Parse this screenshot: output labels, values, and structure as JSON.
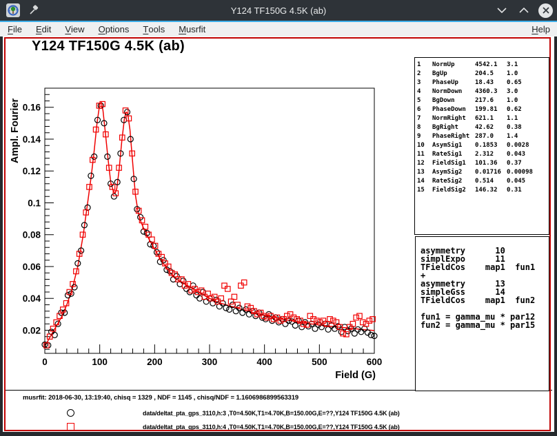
{
  "window": {
    "title": "Y124 TF150G 4.5K (ab)"
  },
  "menu": {
    "items": [
      "File",
      "Edit",
      "View",
      "Options",
      "Tools",
      "Musrfit"
    ],
    "help_label": "Help"
  },
  "param_table": {
    "rows": [
      [
        "1",
        "NormUp",
        "4542.1",
        "3.1"
      ],
      [
        "2",
        "BgUp",
        "204.5",
        "1.0"
      ],
      [
        "3",
        "PhaseUp",
        "18.43",
        "0.65"
      ],
      [
        "4",
        "NormDown",
        "4360.3",
        "3.0"
      ],
      [
        "5",
        "BgDown",
        "217.6",
        "1.0"
      ],
      [
        "6",
        "PhaseDown",
        "199.81",
        "0.62"
      ],
      [
        "7",
        "NormRight",
        "621.1",
        "1.1"
      ],
      [
        "8",
        "BgRight",
        "42.62",
        "0.38"
      ],
      [
        "9",
        "PhaseRight",
        "287.0",
        "1.4"
      ],
      [
        "10",
        "AsymSig1",
        "0.1853",
        "0.0028"
      ],
      [
        "11",
        "RateSig1",
        "2.312",
        "0.043"
      ],
      [
        "12",
        "FieldSig1",
        "101.36",
        "0.37"
      ],
      [
        "13",
        "AsymSig2",
        "0.01716",
        "0.00098"
      ],
      [
        "14",
        "RateSig2",
        "0.514",
        "0.045"
      ],
      [
        "15",
        "FieldSig2",
        "146.32",
        "0.31"
      ]
    ]
  },
  "theory": {
    "lines": [
      "asymmetry      10",
      "simplExpo      11",
      "TFieldCos    map1  fun1",
      "+",
      "asymmetry      13",
      "simpleGss      14",
      "TFieldCos    map1  fun2",
      "",
      "fun1 = gamma_mu * par12",
      "fun2 = gamma_mu * par15"
    ]
  },
  "footer": {
    "info": "musrfit: 2018-06-30, 13:19:40, chisq = 1329 , NDF = 1145 , chisq/NDF = 1.1606986899563319",
    "legend": [
      {
        "marker": "circle",
        "color": "#000000",
        "label": "data/deltat_pta_gps_3110,h:3 ,T0=4.50K,T1=4.70K,B=150.00G,E=??,Y124 TF150G 4.5K (ab)"
      },
      {
        "marker": "square",
        "color": "#f00000",
        "label": "data/deltat_pta_gps_3110,h:4 ,T0=4.50K,T1=4.70K,B=150.00G,E=??,Y124 TF150G 4.5K (ab)"
      }
    ]
  },
  "colors": {
    "accent_blue": "#3daee9",
    "highlight_red": "#c00000",
    "data_red": "#f00000",
    "data_black": "#000000"
  },
  "chart_data": {
    "type": "scatter",
    "title": "Y124 TF150G 4.5K (ab)",
    "xlabel": "Field (G)",
    "ylabel": "Ampl. Fourier",
    "xlim": [
      0,
      600
    ],
    "ylim": [
      0.0055,
      0.172
    ],
    "grid": false,
    "x_major_ticks": [
      0,
      100,
      200,
      300,
      400,
      500,
      600
    ],
    "x_minor_step": 20,
    "y_major_ticks": [
      0.02,
      0.04,
      0.06,
      0.08,
      0.1,
      0.12,
      0.14,
      0.16
    ],
    "y_major_labels": [
      "0.02",
      "0.04",
      "0.06",
      "0.08",
      "0.1",
      "0.12",
      "0.14",
      "0.16"
    ],
    "y_minor_step": 0.004,
    "fit_line": {
      "name": "fit",
      "color": "#f00000",
      "x": [
        0,
        10,
        20,
        30,
        40,
        50,
        60,
        70,
        80,
        85,
        90,
        95,
        100,
        103,
        106,
        110,
        115,
        120,
        125,
        128,
        131,
        135,
        140,
        145,
        148,
        151,
        155,
        160,
        165,
        170,
        175,
        180,
        190,
        200,
        210,
        220,
        230,
        240,
        250,
        260,
        280,
        300,
        320,
        340,
        360,
        380,
        400,
        420,
        440,
        460,
        480,
        500,
        520,
        540,
        560,
        580,
        600
      ],
      "y": [
        0.01,
        0.016,
        0.022,
        0.028,
        0.036,
        0.046,
        0.06,
        0.08,
        0.105,
        0.118,
        0.133,
        0.15,
        0.162,
        0.163,
        0.158,
        0.145,
        0.128,
        0.113,
        0.107,
        0.106,
        0.109,
        0.12,
        0.138,
        0.153,
        0.157,
        0.156,
        0.146,
        0.125,
        0.105,
        0.094,
        0.088,
        0.084,
        0.077,
        0.071,
        0.065,
        0.06,
        0.0555,
        0.052,
        0.05,
        0.048,
        0.044,
        0.04,
        0.037,
        0.035,
        0.033,
        0.031,
        0.0295,
        0.028,
        0.0265,
        0.0252,
        0.0242,
        0.0233,
        0.0225,
        0.0218,
        0.0211,
        0.0204,
        0.0198
      ]
    },
    "series": [
      {
        "name": "data/deltat_pta_gps_3110,h:3",
        "marker": "circle",
        "color": "#000000",
        "points": [
          [
            0,
            0.011
          ],
          [
            6,
            0.0106
          ],
          [
            12,
            0.019
          ],
          [
            18,
            0.017
          ],
          [
            24,
            0.024
          ],
          [
            30,
            0.031
          ],
          [
            36,
            0.031
          ],
          [
            42,
            0.042
          ],
          [
            48,
            0.043
          ],
          [
            54,
            0.047
          ],
          [
            60,
            0.062
          ],
          [
            66,
            0.07
          ],
          [
            72,
            0.086
          ],
          [
            78,
            0.097
          ],
          [
            84,
            0.117
          ],
          [
            90,
            0.129
          ],
          [
            96,
            0.152
          ],
          [
            102,
            0.161
          ],
          [
            108,
            0.15
          ],
          [
            114,
            0.129
          ],
          [
            120,
            0.112
          ],
          [
            126,
            0.104
          ],
          [
            132,
            0.113
          ],
          [
            138,
            0.131
          ],
          [
            144,
            0.152
          ],
          [
            150,
            0.157
          ],
          [
            156,
            0.14
          ],
          [
            162,
            0.115
          ],
          [
            168,
            0.096
          ],
          [
            174,
            0.091
          ],
          [
            180,
            0.082
          ],
          [
            186,
            0.081
          ],
          [
            192,
            0.074
          ],
          [
            198,
            0.073
          ],
          [
            204,
            0.069
          ],
          [
            210,
            0.063
          ],
          [
            216,
            0.064
          ],
          [
            222,
            0.058
          ],
          [
            228,
            0.057
          ],
          [
            234,
            0.052
          ],
          [
            240,
            0.054
          ],
          [
            246,
            0.049
          ],
          [
            252,
            0.051
          ],
          [
            258,
            0.046
          ],
          [
            264,
            0.044
          ],
          [
            270,
            0.048
          ],
          [
            276,
            0.042
          ],
          [
            282,
            0.04
          ],
          [
            288,
            0.044
          ],
          [
            294,
            0.038
          ],
          [
            300,
            0.04
          ],
          [
            306,
            0.037
          ],
          [
            312,
            0.039
          ],
          [
            318,
            0.035
          ],
          [
            324,
            0.037
          ],
          [
            330,
            0.034
          ],
          [
            336,
            0.033
          ],
          [
            342,
            0.036
          ],
          [
            348,
            0.032
          ],
          [
            354,
            0.034
          ],
          [
            360,
            0.031
          ],
          [
            366,
            0.033
          ],
          [
            372,
            0.03
          ],
          [
            378,
            0.032
          ],
          [
            384,
            0.029
          ],
          [
            390,
            0.031
          ],
          [
            396,
            0.028
          ],
          [
            402,
            0.027
          ],
          [
            408,
            0.03
          ],
          [
            414,
            0.026
          ],
          [
            420,
            0.028
          ],
          [
            426,
            0.025
          ],
          [
            432,
            0.027
          ],
          [
            438,
            0.024
          ],
          [
            444,
            0.026
          ],
          [
            450,
            0.0255
          ],
          [
            456,
            0.023
          ],
          [
            462,
            0.026
          ],
          [
            468,
            0.022
          ],
          [
            474,
            0.025
          ],
          [
            480,
            0.0225
          ],
          [
            486,
            0.024
          ],
          [
            492,
            0.021
          ],
          [
            498,
            0.0235
          ],
          [
            504,
            0.022
          ],
          [
            510,
            0.024
          ],
          [
            516,
            0.0205
          ],
          [
            522,
            0.023
          ],
          [
            528,
            0.021
          ],
          [
            534,
            0.0225
          ],
          [
            540,
            0.019
          ],
          [
            546,
            0.022
          ],
          [
            552,
            0.0195
          ],
          [
            558,
            0.021
          ],
          [
            564,
            0.018
          ],
          [
            570,
            0.0205
          ],
          [
            576,
            0.019
          ],
          [
            582,
            0.021
          ],
          [
            588,
            0.0185
          ],
          [
            594,
            0.017
          ],
          [
            600,
            0.0165
          ]
        ]
      },
      {
        "name": "data/deltat_pta_gps_3110,h:4",
        "marker": "square",
        "color": "#f00000",
        "points": [
          [
            3,
            0.0105
          ],
          [
            9,
            0.016
          ],
          [
            15,
            0.021
          ],
          [
            21,
            0.025
          ],
          [
            27,
            0.029
          ],
          [
            33,
            0.033
          ],
          [
            39,
            0.037
          ],
          [
            45,
            0.044
          ],
          [
            51,
            0.049
          ],
          [
            57,
            0.057
          ],
          [
            63,
            0.068
          ],
          [
            69,
            0.08
          ],
          [
            75,
            0.094
          ],
          [
            81,
            0.11
          ],
          [
            87,
            0.127
          ],
          [
            93,
            0.146
          ],
          [
            99,
            0.161
          ],
          [
            105,
            0.162
          ],
          [
            111,
            0.143
          ],
          [
            117,
            0.122
          ],
          [
            123,
            0.11
          ],
          [
            129,
            0.106
          ],
          [
            135,
            0.122
          ],
          [
            141,
            0.141
          ],
          [
            147,
            0.158
          ],
          [
            153,
            0.153
          ],
          [
            159,
            0.131
          ],
          [
            165,
            0.107
          ],
          [
            171,
            0.095
          ],
          [
            177,
            0.089
          ],
          [
            183,
            0.085
          ],
          [
            189,
            0.08
          ],
          [
            195,
            0.077
          ],
          [
            201,
            0.073
          ],
          [
            207,
            0.068
          ],
          [
            213,
            0.066
          ],
          [
            219,
            0.062
          ],
          [
            225,
            0.06
          ],
          [
            231,
            0.056
          ],
          [
            237,
            0.055
          ],
          [
            243,
            0.052
          ],
          [
            249,
            0.052
          ],
          [
            255,
            0.048
          ],
          [
            261,
            0.049
          ],
          [
            267,
            0.045
          ],
          [
            273,
            0.046
          ],
          [
            279,
            0.044
          ],
          [
            285,
            0.045
          ],
          [
            291,
            0.041
          ],
          [
            297,
            0.043
          ],
          [
            303,
            0.04
          ],
          [
            309,
            0.041
          ],
          [
            315,
            0.038
          ],
          [
            321,
            0.04
          ],
          [
            327,
            0.048
          ],
          [
            333,
            0.046
          ],
          [
            339,
            0.038
          ],
          [
            345,
            0.041
          ],
          [
            351,
            0.036
          ],
          [
            357,
            0.048
          ],
          [
            363,
            0.05
          ],
          [
            369,
            0.035
          ],
          [
            375,
            0.034
          ],
          [
            381,
            0.032
          ],
          [
            387,
            0.03
          ],
          [
            393,
            0.031
          ],
          [
            399,
            0.029
          ],
          [
            405,
            0.028
          ],
          [
            411,
            0.029
          ],
          [
            417,
            0.027
          ],
          [
            423,
            0.028
          ],
          [
            429,
            0.026
          ],
          [
            435,
            0.027
          ],
          [
            441,
            0.029
          ],
          [
            447,
            0.03
          ],
          [
            453,
            0.028
          ],
          [
            459,
            0.027
          ],
          [
            465,
            0.026
          ],
          [
            471,
            0.024
          ],
          [
            477,
            0.0235
          ],
          [
            483,
            0.029
          ],
          [
            489,
            0.027
          ],
          [
            495,
            0.026
          ],
          [
            501,
            0.025
          ],
          [
            507,
            0.026
          ],
          [
            513,
            0.024
          ],
          [
            519,
            0.027
          ],
          [
            525,
            0.026
          ],
          [
            531,
            0.025
          ],
          [
            537,
            0.022
          ],
          [
            543,
            0.018
          ],
          [
            549,
            0.0175
          ],
          [
            555,
            0.022
          ],
          [
            561,
            0.024
          ],
          [
            567,
            0.028
          ],
          [
            573,
            0.029
          ],
          [
            579,
            0.025
          ],
          [
            585,
            0.024
          ],
          [
            591,
            0.026
          ],
          [
            597,
            0.027
          ]
        ]
      }
    ]
  }
}
